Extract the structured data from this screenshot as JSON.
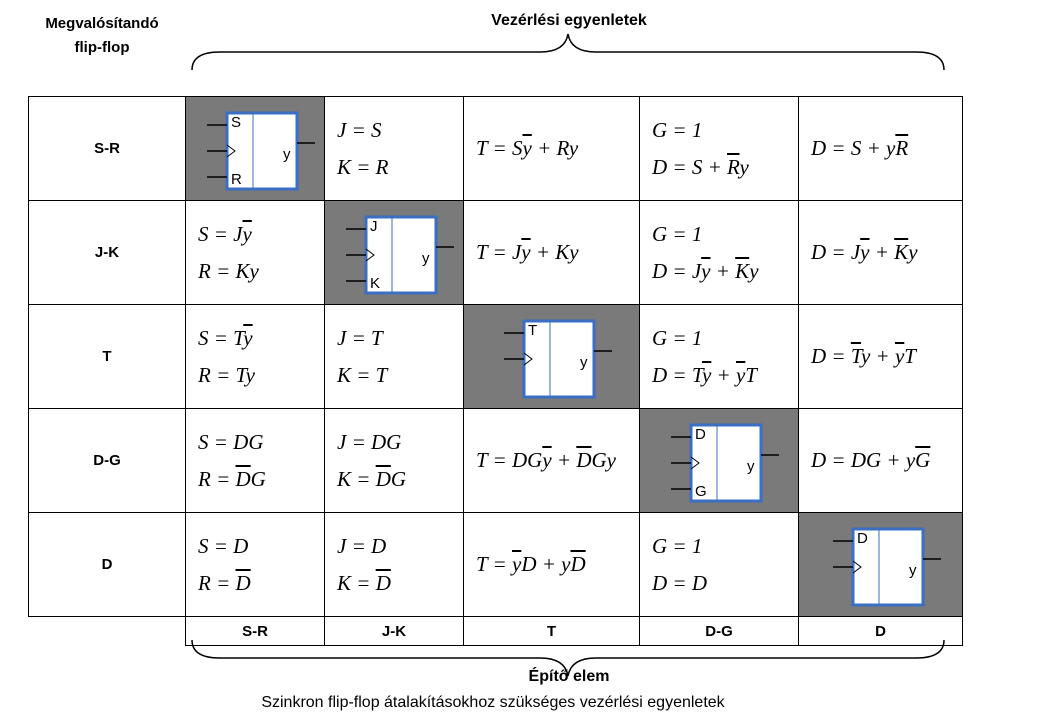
{
  "header": {
    "left_line1": "Megvalósítandó",
    "left_line2": "flip-flop",
    "top": "Vezérlési egyenletek"
  },
  "rows": [
    "S-R",
    "J-K",
    "T",
    "D-G",
    "D"
  ],
  "columns": [
    "S-R",
    "J-K",
    "T",
    "D-G",
    "D"
  ],
  "footer": {
    "title": "Építő elem",
    "caption": "Szinkron flip-flop átalakításokhoz szükséges vezérlési egyenletek"
  },
  "symbols": {
    "sr": {
      "in1": "S",
      "in2": "R",
      "out": "y"
    },
    "jk": {
      "in1": "J",
      "in2": "K",
      "out": "y"
    },
    "t": {
      "in1": "T",
      "out": "y"
    },
    "dg": {
      "in1": "D",
      "in2": "G",
      "out": "y"
    },
    "d": {
      "in1": "D",
      "out": "y"
    }
  },
  "colors": {
    "shade": "#7a7a7a",
    "symbol_border": "#3a6fc4"
  }
}
